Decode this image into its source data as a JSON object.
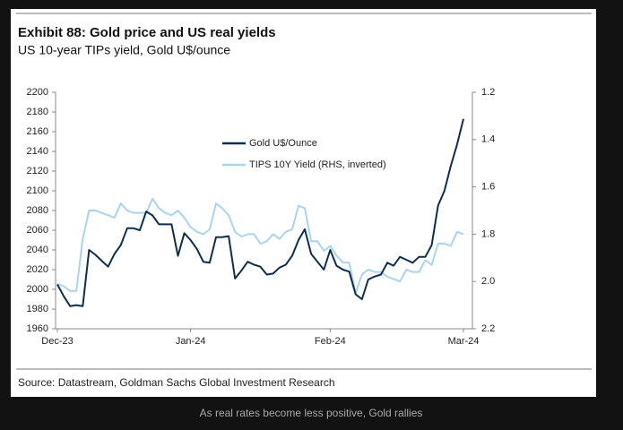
{
  "chart_data": {
    "type": "line",
    "title": "Exhibit 88: Gold price and US real yields",
    "subtitle": "US 10-year TIPs yield, Gold U$/ounce",
    "categories": [
      "Dec-23",
      null,
      null,
      null,
      null,
      null,
      null,
      null,
      null,
      null,
      null,
      null,
      null,
      null,
      null,
      null,
      null,
      null,
      null,
      null,
      null,
      "Jan-24",
      null,
      null,
      null,
      null,
      null,
      null,
      null,
      null,
      null,
      null,
      null,
      null,
      null,
      null,
      null,
      null,
      null,
      null,
      null,
      null,
      null,
      "Feb-24",
      null,
      null,
      null,
      null,
      null,
      null,
      null,
      null,
      null,
      null,
      null,
      null,
      null,
      null,
      null,
      null,
      null,
      null,
      null,
      null,
      "Mar-24"
    ],
    "series": [
      {
        "name": "Gold U$/Ounce",
        "color": "#0d2e4e",
        "values": [
          2005,
          1993,
          1983,
          1984,
          1983,
          2040,
          2035,
          2029,
          2023,
          2036,
          2045,
          2062,
          2062,
          2060,
          2079,
          2075,
          2066,
          2066,
          2066,
          2034,
          2057,
          2050,
          2041,
          2028,
          2027,
          2053,
          2053,
          2054,
          2011,
          2019,
          2028,
          2025,
          2023,
          2015,
          2016,
          2022,
          2025,
          2034,
          2050,
          2061,
          2036,
          2028,
          2020,
          2040,
          2024,
          2020,
          2018,
          1995,
          1990,
          2010,
          2013,
          2015,
          2027,
          2024,
          2033,
          2030,
          2027,
          2033,
          2033,
          2045,
          2085,
          2100,
          2125,
          2147,
          2173
        ]
      },
      {
        "name": "TIPS 10Y Yield (RHS, inverted)",
        "color": "#a9d4ef",
        "axis": "y2",
        "values": [
          2.01,
          2.02,
          2.04,
          2.04,
          1.82,
          1.7,
          1.7,
          1.71,
          1.72,
          1.73,
          1.67,
          1.7,
          1.71,
          1.71,
          1.71,
          1.65,
          1.69,
          1.71,
          1.72,
          1.7,
          1.73,
          1.77,
          1.79,
          1.8,
          1.78,
          1.67,
          1.69,
          1.72,
          1.79,
          1.81,
          1.8,
          1.8,
          1.84,
          1.83,
          1.8,
          1.82,
          1.79,
          1.78,
          1.68,
          1.69,
          1.83,
          1.83,
          1.87,
          1.85,
          1.89,
          1.92,
          1.92,
          2.05,
          1.97,
          1.95,
          1.96,
          1.96,
          1.98,
          1.99,
          2.0,
          1.95,
          1.96,
          1.96,
          1.91,
          1.93,
          1.84,
          1.84,
          1.85,
          1.79,
          1.8
        ]
      }
    ],
    "ylim": [
      1960,
      2200
    ],
    "yticks": [
      1960,
      1980,
      2000,
      2020,
      2040,
      2060,
      2080,
      2100,
      2120,
      2140,
      2160,
      2180,
      2200
    ],
    "y2lim": [
      1.2,
      2.2
    ],
    "y2_inverted": true,
    "y2ticks": [
      1.2,
      1.4,
      1.6,
      1.8,
      {
        "value": 2,
        "label": "2.0"
      },
      2.2
    ],
    "legend": "upper-center",
    "grid": false,
    "source": "Source: Datastream, Goldman Sachs Global Investment Research"
  },
  "caption": "As real rates become less positive, Gold rallies"
}
